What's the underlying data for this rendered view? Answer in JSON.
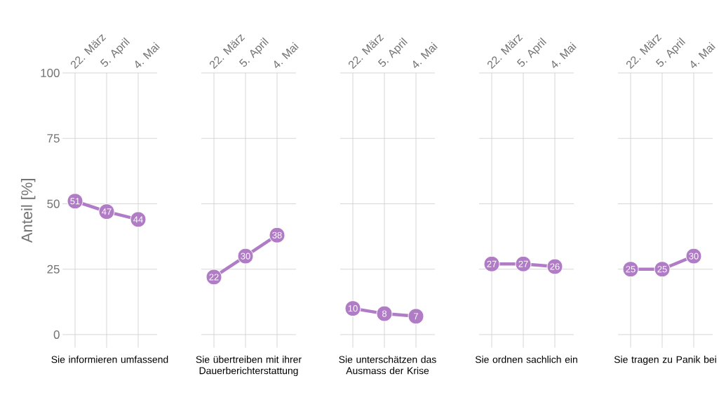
{
  "chart_data": [
    {
      "type": "line",
      "categories": [
        "22. März",
        "5. April",
        "4. Mai"
      ],
      "values": [
        51,
        47,
        44
      ],
      "color": "#b07cc6",
      "xlabel": "Sie informieren umfassend",
      "ylabel": "Anteil [%]",
      "ylim": [
        -5,
        100
      ],
      "yticks": [
        0,
        25,
        50,
        75,
        100
      ],
      "grid": true,
      "marker": "circle",
      "line_style": "solid",
      "data_labels": true
    },
    {
      "type": "line",
      "categories": [
        "22. März",
        "5. April",
        "4. Mai"
      ],
      "values": [
        22,
        30,
        38
      ],
      "color": "#b07cc6",
      "xlabel": "Sie übertreiben mit ihrer Dauerberichterstattung",
      "ylim": [
        -5,
        100
      ],
      "yticks": [
        0,
        25,
        50,
        75,
        100
      ],
      "grid": true,
      "marker": "circle",
      "line_style": "solid",
      "data_labels": true,
      "tick_labels": "x"
    },
    {
      "type": "line",
      "categories": [
        "22. März",
        "5. April",
        "4. Mai"
      ],
      "values": [
        10,
        8,
        7
      ],
      "color": "#b07cc6",
      "xlabel": "Sie unterschätzen das Ausmass der Krise",
      "ylim": [
        -5,
        100
      ],
      "yticks": [
        0,
        25,
        50,
        75,
        100
      ],
      "grid": true,
      "marker": "circle",
      "line_style": "solid",
      "data_labels": true,
      "tick_labels": "x"
    },
    {
      "type": "line",
      "categories": [
        "22. März",
        "5. April",
        "4. Mai"
      ],
      "values": [
        27,
        27,
        26
      ],
      "color": "#b07cc6",
      "xlabel": "Sie ordnen sachlich ein",
      "ylim": [
        -5,
        100
      ],
      "yticks": [
        0,
        25,
        50,
        75,
        100
      ],
      "grid": true,
      "marker": "circle",
      "line_style": "solid",
      "data_labels": true,
      "tick_labels": "x"
    },
    {
      "type": "line",
      "categories": [
        "22. März",
        "5. April",
        "4. Mai"
      ],
      "values": [
        25,
        25,
        30
      ],
      "color": "#b07cc6",
      "xlabel": "Sie tragen zu Panik bei",
      "ylim": [
        -5,
        100
      ],
      "yticks": [
        0,
        25,
        50,
        75,
        100
      ],
      "grid": true,
      "marker": "circle",
      "line_style": "solid",
      "data_labels": true,
      "tick_labels": "x"
    }
  ]
}
